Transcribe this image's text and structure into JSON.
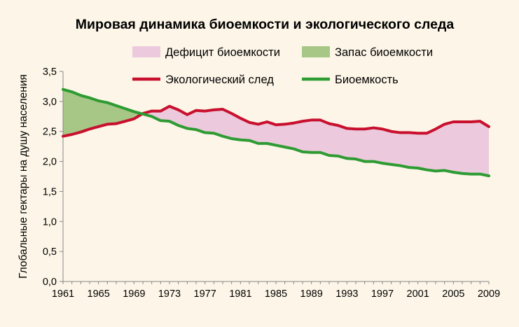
{
  "chart_data": {
    "type": "line",
    "title": "Мировая динамика биоемкости и экологического следа",
    "ylabel": "Глобальные гектары на душу населения",
    "xlabel": "",
    "ylim": [
      0,
      3.5
    ],
    "yticks": [
      "0,0",
      "0,5",
      "1,0",
      "1,5",
      "2,0",
      "2,5",
      "3,0",
      "3,5"
    ],
    "xticks": [
      "1961",
      "1965",
      "1969",
      "1973",
      "1977",
      "1981",
      "1985",
      "1989",
      "1993",
      "1997",
      "2001",
      "2005",
      "2009"
    ],
    "legend": {
      "placement": "top",
      "items": [
        {
          "label": "Дефицит биоемкости",
          "kind": "area",
          "color": "#ecc9dc"
        },
        {
          "label": "Запас биоемкости",
          "kind": "area",
          "color": "#a6c786"
        },
        {
          "label": "Экологический след",
          "kind": "line",
          "color": "#c8102e"
        },
        {
          "label": "Биоемкость",
          "kind": "line",
          "color": "#2e9b33"
        }
      ]
    },
    "x": [
      1961,
      1962,
      1963,
      1964,
      1965,
      1966,
      1967,
      1968,
      1969,
      1970,
      1971,
      1972,
      1973,
      1974,
      1975,
      1976,
      1977,
      1978,
      1979,
      1980,
      1981,
      1982,
      1983,
      1984,
      1985,
      1986,
      1987,
      1988,
      1989,
      1990,
      1991,
      1992,
      1993,
      1994,
      1995,
      1996,
      1997,
      1998,
      1999,
      2000,
      2001,
      2002,
      2003,
      2004,
      2005,
      2006,
      2007,
      2008,
      2009
    ],
    "series": [
      {
        "name": "Экологический след",
        "color": "#c8102e",
        "values": [
          2.42,
          2.45,
          2.49,
          2.54,
          2.58,
          2.62,
          2.63,
          2.67,
          2.71,
          2.8,
          2.84,
          2.84,
          2.92,
          2.86,
          2.78,
          2.85,
          2.84,
          2.86,
          2.87,
          2.8,
          2.72,
          2.65,
          2.62,
          2.66,
          2.61,
          2.62,
          2.64,
          2.67,
          2.69,
          2.69,
          2.63,
          2.6,
          2.55,
          2.54,
          2.54,
          2.56,
          2.54,
          2.5,
          2.48,
          2.48,
          2.47,
          2.47,
          2.54,
          2.62,
          2.66,
          2.66,
          2.66,
          2.67,
          2.58
        ]
      },
      {
        "name": "Биоемкость",
        "color": "#2e9b33",
        "values": [
          3.2,
          3.16,
          3.1,
          3.06,
          3.01,
          2.98,
          2.93,
          2.88,
          2.83,
          2.79,
          2.75,
          2.68,
          2.67,
          2.6,
          2.55,
          2.53,
          2.48,
          2.47,
          2.42,
          2.38,
          2.36,
          2.35,
          2.3,
          2.3,
          2.27,
          2.24,
          2.21,
          2.16,
          2.15,
          2.15,
          2.1,
          2.09,
          2.05,
          2.04,
          2.0,
          2.0,
          1.97,
          1.95,
          1.93,
          1.9,
          1.89,
          1.86,
          1.84,
          1.85,
          1.82,
          1.8,
          1.79,
          1.79,
          1.76
        ]
      }
    ],
    "grid": false
  }
}
